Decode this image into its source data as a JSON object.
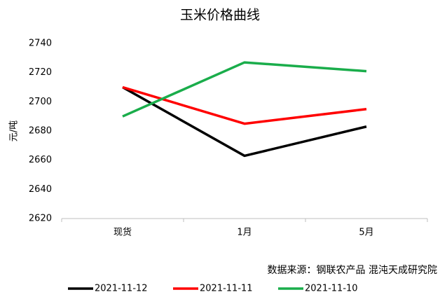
{
  "chart_data": {
    "type": "line",
    "title": "玉米价格曲线",
    "y_label": "元/吨",
    "annotation": "数据来源：钢联农产品 混沌天成研究院",
    "categories": [
      "现货",
      "1月",
      "5月"
    ],
    "series": [
      {
        "name": "2021-11-12",
        "color": "#000000",
        "values": [
          2710,
          2663,
          2683
        ]
      },
      {
        "name": "2021-11-11",
        "color": "#ff0000",
        "values": [
          2710,
          2685,
          2695
        ]
      },
      {
        "name": "2021-11-10",
        "color": "#1aad4b",
        "values": [
          2690,
          2727,
          2721
        ]
      }
    ],
    "ylim": [
      2620,
      2740
    ],
    "yticks": [
      2620,
      2640,
      2660,
      2680,
      2700,
      2720,
      2740
    ],
    "grid": false,
    "legend": "bottom"
  }
}
